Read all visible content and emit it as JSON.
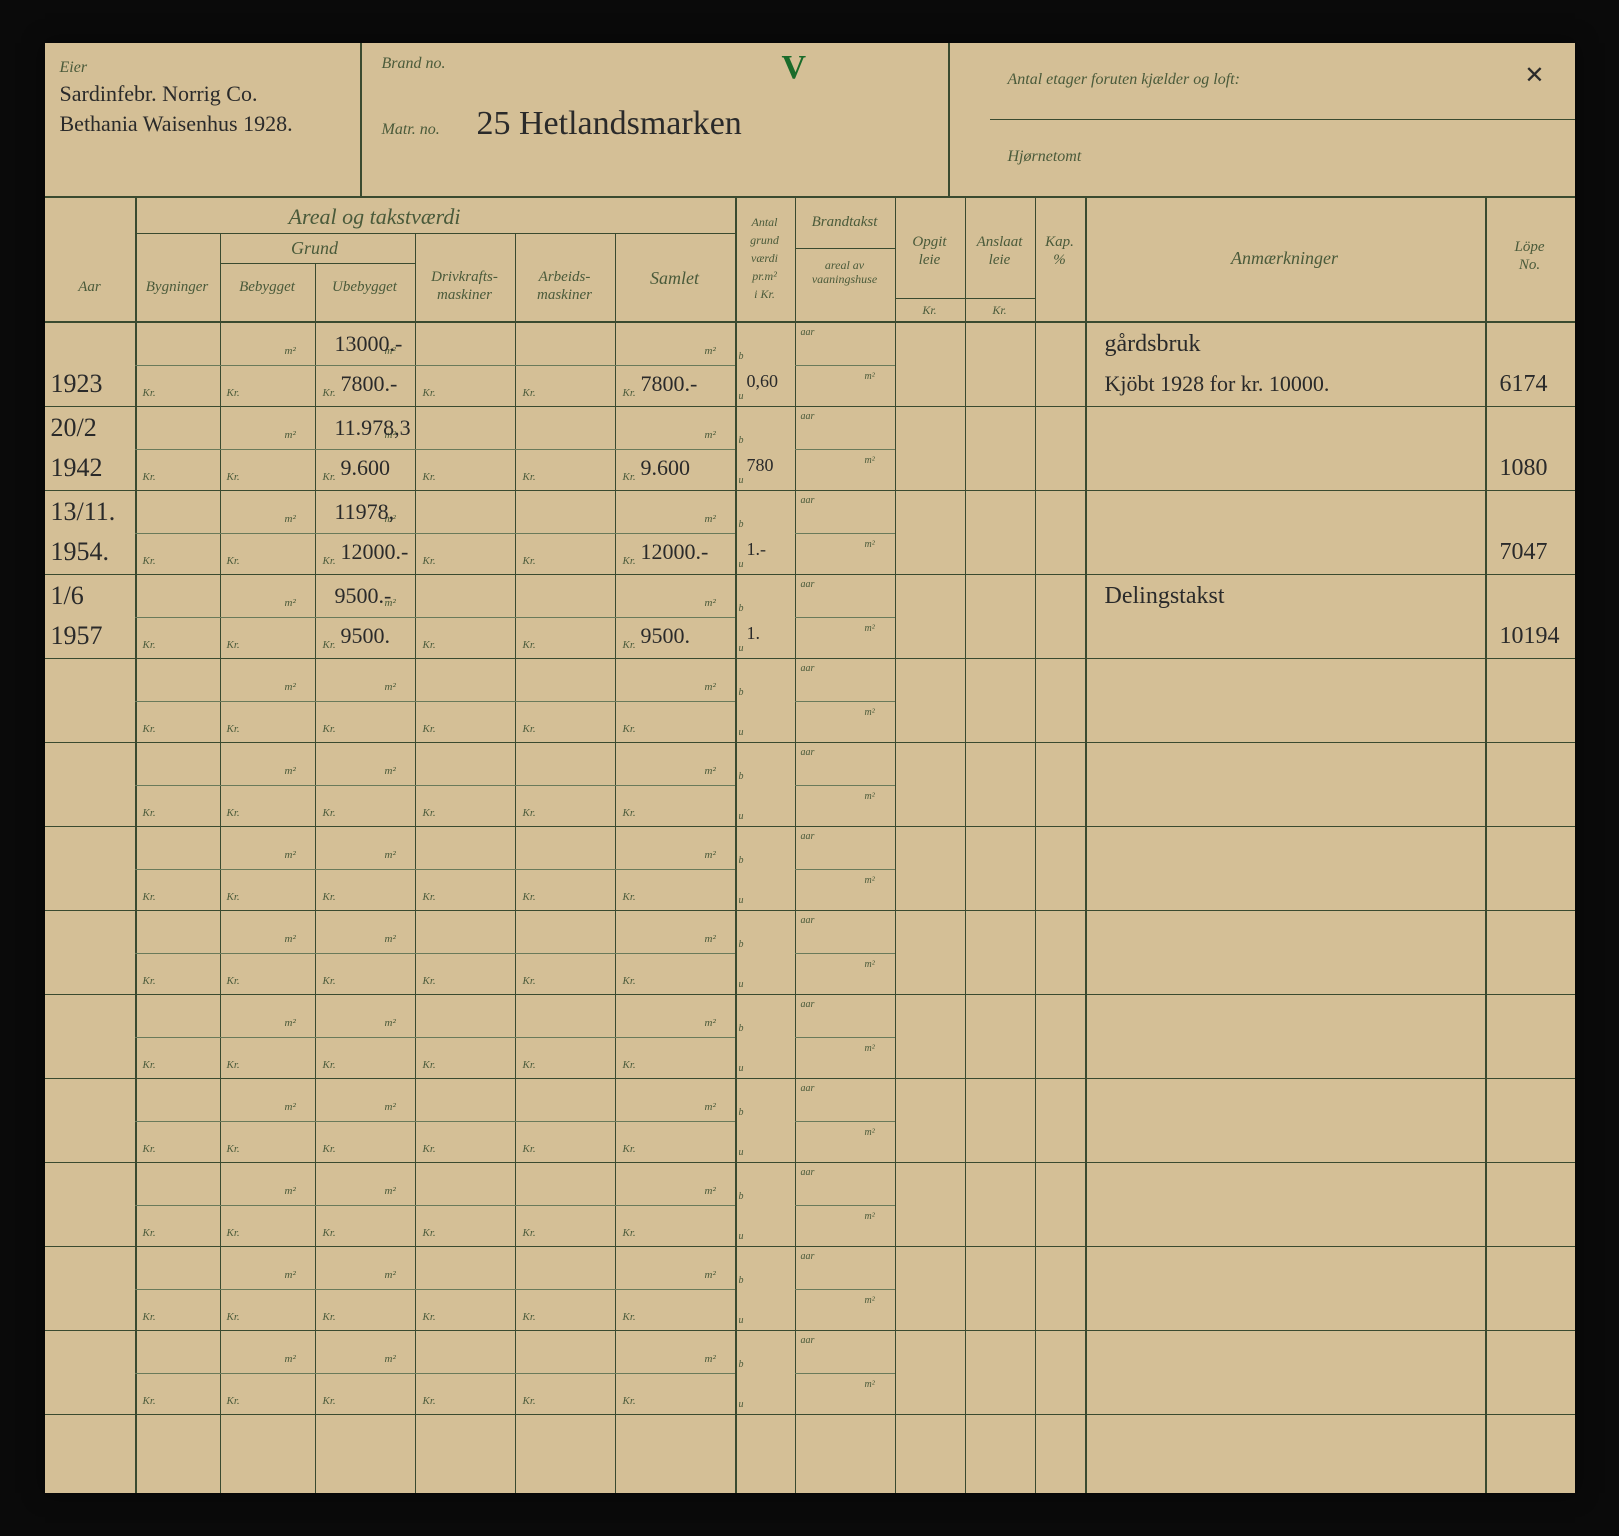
{
  "header": {
    "eier_label": "Eier",
    "eier_line1": "Sardinfebr. Norrig Co.",
    "eier_line2": "Bethania Waisenhus 1928.",
    "brand_label": "Brand no.",
    "matr_label": "Matr. no.",
    "matr_value": "25 Hetlandsmarken",
    "etager_label": "Antal etager foruten kjælder og loft:",
    "etager_value": "✕",
    "hjorne_label": "Hjørnetomt",
    "checkmark": "V"
  },
  "columns": {
    "areal_title": "Areal og takstværdi",
    "grund_title": "Grund",
    "aar": "Aar",
    "bygninger": "Bygninger",
    "bebygget": "Bebygget",
    "ubebygget": "Ubebygget",
    "drivkraft": "Drivkrafts-\nmaskiner",
    "arbeids": "Arbeids-\nmaskiner",
    "samlet": "Samlet",
    "antal": "Antal\ngrund\nværdi\npr.m²\ni Kr.",
    "brandtakst": "Brandtakst",
    "brandtakst_sub": "areal av\nvaaningshuse",
    "opgit": "Opgit\nleie",
    "anslaat": "Anslaat\nleie",
    "kap": "Kap.\n%",
    "anm": "Anmærkninger",
    "lope": "Löpe\nNo.",
    "kr": "Kr.",
    "m2": "m²",
    "aar_u": "aar",
    "b": "b",
    "u": "u"
  },
  "rows": [
    {
      "year_top": "",
      "year_bot": "1923",
      "ubeb_top": "13000.-",
      "ubeb_bot": "7800.-",
      "samlet_bot": "7800.-",
      "antal_bot": "0,60",
      "anm1": "gårdsbruk",
      "anm2": "Kjöbt 1928 for kr. 10000.",
      "lope": "6174"
    },
    {
      "year_top": "20/2",
      "year_bot": "1942",
      "ubeb_top": "11.978,3",
      "ubeb_bot": "9.600",
      "samlet_bot": "9.600",
      "antal_bot": "780",
      "anm1": "",
      "anm2": "",
      "lope": "1080"
    },
    {
      "year_top": "13/11.",
      "year_bot": "1954.",
      "ubeb_top": "11978,",
      "ubeb_bot": "12000.-",
      "samlet_bot": "12000.-",
      "antal_bot": "1.-",
      "anm1": "",
      "anm2": "",
      "lope": "7047"
    },
    {
      "year_top": "1/6",
      "year_bot": "1957",
      "ubeb_top": "9500.-",
      "ubeb_bot": "9500.",
      "samlet_bot": "9500.",
      "antal_bot": "1.",
      "anm1": "Delingstakst",
      "anm2": "",
      "lope": "10194"
    },
    {},
    {},
    {},
    {},
    {},
    {},
    {},
    {},
    {}
  ],
  "style": {
    "paper": "#d4bf96",
    "ink_printed": "#4a5a3a",
    "ink_script": "#2a2a2a",
    "line": "#3a4a2f"
  }
}
